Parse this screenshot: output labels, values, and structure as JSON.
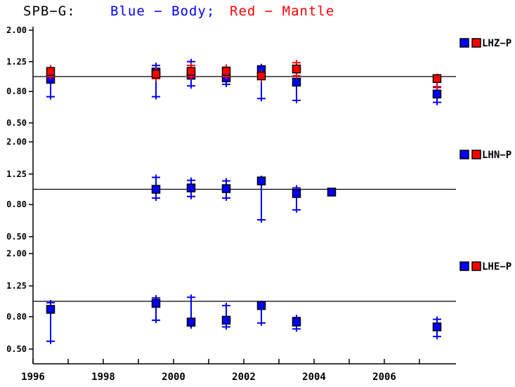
{
  "title": {
    "station": "SPB−G:",
    "body_label": "Blue − Body;",
    "mantle_label": "Red − Mantle"
  },
  "colors": {
    "body": "#0000ff",
    "mantle": "#ff0000",
    "axis": "#000000",
    "background": "#ffffff"
  },
  "x_axis": {
    "min": 1996,
    "max": 2008.1,
    "minor_tick_years": [
      1996,
      1997,
      1998,
      1999,
      2000,
      2001,
      2002,
      2003,
      2004,
      2005,
      2006,
      2007
    ],
    "labeled_years": [
      "1996",
      "1998",
      "2000",
      "2002",
      "2004",
      "2006"
    ]
  },
  "chart_data": [
    {
      "type": "scatter",
      "label": "LHZ−P",
      "yscale": "log",
      "ylim": [
        0.5,
        2.0
      ],
      "ref_line": 1.0,
      "yticks": [
        {
          "value": 2.0,
          "label": "2.00"
        },
        {
          "value": 1.25,
          "label": "1.25"
        },
        {
          "value": 0.8,
          "label": "0.80"
        },
        {
          "value": 0.5,
          "label": "0.50"
        }
      ],
      "series": [
        {
          "name": "Body",
          "color": "#0000ff",
          "points": [
            {
              "x": 1996.5,
              "y": 0.96,
              "lo": 0.74,
              "hi": 1.08
            },
            {
              "x": 1999.5,
              "y": 1.07,
              "lo": 0.74,
              "hi": 1.18
            },
            {
              "x": 2000.5,
              "y": 1.02,
              "lo": 0.87,
              "hi": 1.25
            },
            {
              "x": 2001.5,
              "y": 0.98,
              "lo": 0.89,
              "hi": 1.06
            },
            {
              "x": 2002.5,
              "y": 1.11,
              "lo": 0.72,
              "hi": 1.16
            },
            {
              "x": 2003.5,
              "y": 0.92,
              "lo": 0.7,
              "hi": 1.01
            },
            {
              "x": 2007.5,
              "y": 0.77,
              "lo": 0.68,
              "hi": 0.85
            }
          ]
        },
        {
          "name": "Mantle",
          "color": "#ff0000",
          "points": [
            {
              "x": 1996.5,
              "y": 1.08,
              "lo": 1.0,
              "hi": 1.14
            },
            {
              "x": 1999.5,
              "y": 1.04,
              "lo": 0.97,
              "hi": 1.1
            },
            {
              "x": 2000.5,
              "y": 1.08,
              "lo": 1.0,
              "hi": 1.18
            },
            {
              "x": 2001.5,
              "y": 1.08,
              "lo": 1.0,
              "hi": 1.15
            },
            {
              "x": 2002.5,
              "y": 1.01,
              "lo": 0.96,
              "hi": 1.06
            },
            {
              "x": 2003.5,
              "y": 1.12,
              "lo": 1.01,
              "hi": 1.23
            },
            {
              "x": 2007.5,
              "y": 0.97,
              "lo": 0.86,
              "hi": 1.0
            }
          ]
        }
      ]
    },
    {
      "type": "scatter",
      "label": "LHN−P",
      "yscale": "log",
      "ylim": [
        0.5,
        2.0
      ],
      "ref_line": 1.0,
      "yticks": [
        {
          "value": 2.0,
          "label": "2.00"
        },
        {
          "value": 1.25,
          "label": "1.25"
        },
        {
          "value": 0.8,
          "label": "0.80"
        },
        {
          "value": 0.5,
          "label": "0.50"
        }
      ],
      "series": [
        {
          "name": "Body",
          "color": "#0000ff",
          "points": [
            {
              "x": 1999.5,
              "y": 1.0,
              "lo": 0.88,
              "hi": 1.19
            },
            {
              "x": 2000.5,
              "y": 1.02,
              "lo": 0.9,
              "hi": 1.14
            },
            {
              "x": 2001.5,
              "y": 1.01,
              "lo": 0.88,
              "hi": 1.13
            },
            {
              "x": 2002.5,
              "y": 1.13,
              "lo": 0.64,
              "hi": 1.17
            },
            {
              "x": 2003.5,
              "y": 0.94,
              "lo": 0.74,
              "hi": 1.02
            },
            {
              "x": 2004.5,
              "y": 0.96,
              "lo": null,
              "hi": null
            }
          ]
        },
        {
          "name": "Mantle",
          "color": "#ff0000",
          "points": []
        }
      ]
    },
    {
      "type": "scatter",
      "label": "LHE−P",
      "yscale": "log",
      "ylim": [
        0.5,
        2.0
      ],
      "ref_line": 1.0,
      "yticks": [
        {
          "value": 2.0,
          "label": "2.00"
        },
        {
          "value": 1.25,
          "label": "1.25"
        },
        {
          "value": 0.8,
          "label": "0.80"
        },
        {
          "value": 0.5,
          "label": "0.50"
        }
      ],
      "series": [
        {
          "name": "Body",
          "color": "#0000ff",
          "points": [
            {
              "x": 1996.5,
              "y": 0.89,
              "lo": 0.56,
              "hi": 0.98
            },
            {
              "x": 1999.5,
              "y": 0.97,
              "lo": 0.76,
              "hi": 1.05
            },
            {
              "x": 2000.5,
              "y": 0.74,
              "lo": 0.7,
              "hi": 1.06
            },
            {
              "x": 2001.5,
              "y": 0.76,
              "lo": 0.69,
              "hi": 0.94
            },
            {
              "x": 2002.5,
              "y": 0.94,
              "lo": 0.73,
              "hi": 0.97
            },
            {
              "x": 2003.5,
              "y": 0.74,
              "lo": 0.67,
              "hi": 0.79
            },
            {
              "x": 2007.5,
              "y": 0.69,
              "lo": 0.6,
              "hi": 0.77
            }
          ]
        },
        {
          "name": "Mantle",
          "color": "#ff0000",
          "points": []
        }
      ]
    }
  ]
}
